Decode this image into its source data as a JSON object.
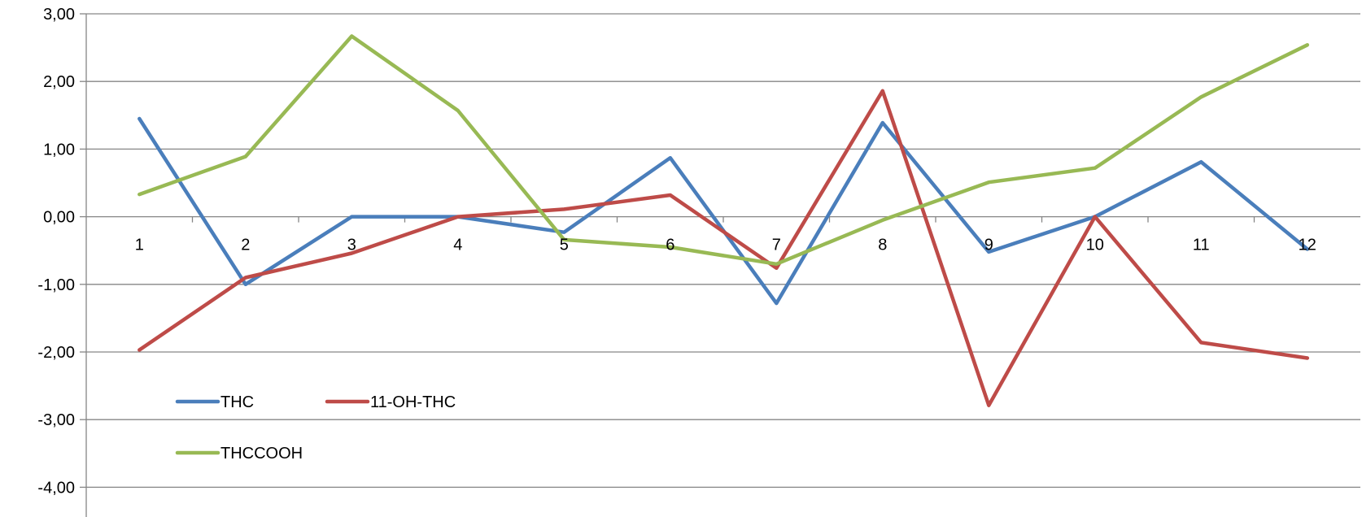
{
  "chart_data": {
    "type": "line",
    "title": "",
    "xlabel": "",
    "ylabel": "",
    "categories": [
      "1",
      "2",
      "3",
      "4",
      "5",
      "6",
      "7",
      "8",
      "9",
      "10",
      "11",
      "12"
    ],
    "y_ticks": [
      "3,00",
      "2,00",
      "1,00",
      "0,00",
      "-1,00",
      "-2,00",
      "-3,00",
      "-4,00"
    ],
    "ylim": [
      -4,
      3
    ],
    "grid": true,
    "legend_position": "bottom-left",
    "series": [
      {
        "name": "THC",
        "color": "#4a7ebb",
        "values": [
          1.45,
          -1.0,
          0.0,
          0.0,
          -0.23,
          0.87,
          -1.28,
          1.39,
          -0.52,
          0.0,
          0.81,
          -0.48
        ]
      },
      {
        "name": "11-OH-THC",
        "color": "#be4b48",
        "values": [
          -1.97,
          -0.9,
          -0.54,
          0.0,
          0.11,
          0.32,
          -0.76,
          1.86,
          -2.79,
          0.0,
          -1.86,
          -2.09
        ]
      },
      {
        "name": "THCCOOH",
        "color": "#98b954",
        "values": [
          0.33,
          0.89,
          2.67,
          1.57,
          -0.34,
          -0.45,
          -0.7,
          -0.05,
          0.51,
          0.72,
          1.77,
          2.54
        ]
      }
    ]
  }
}
